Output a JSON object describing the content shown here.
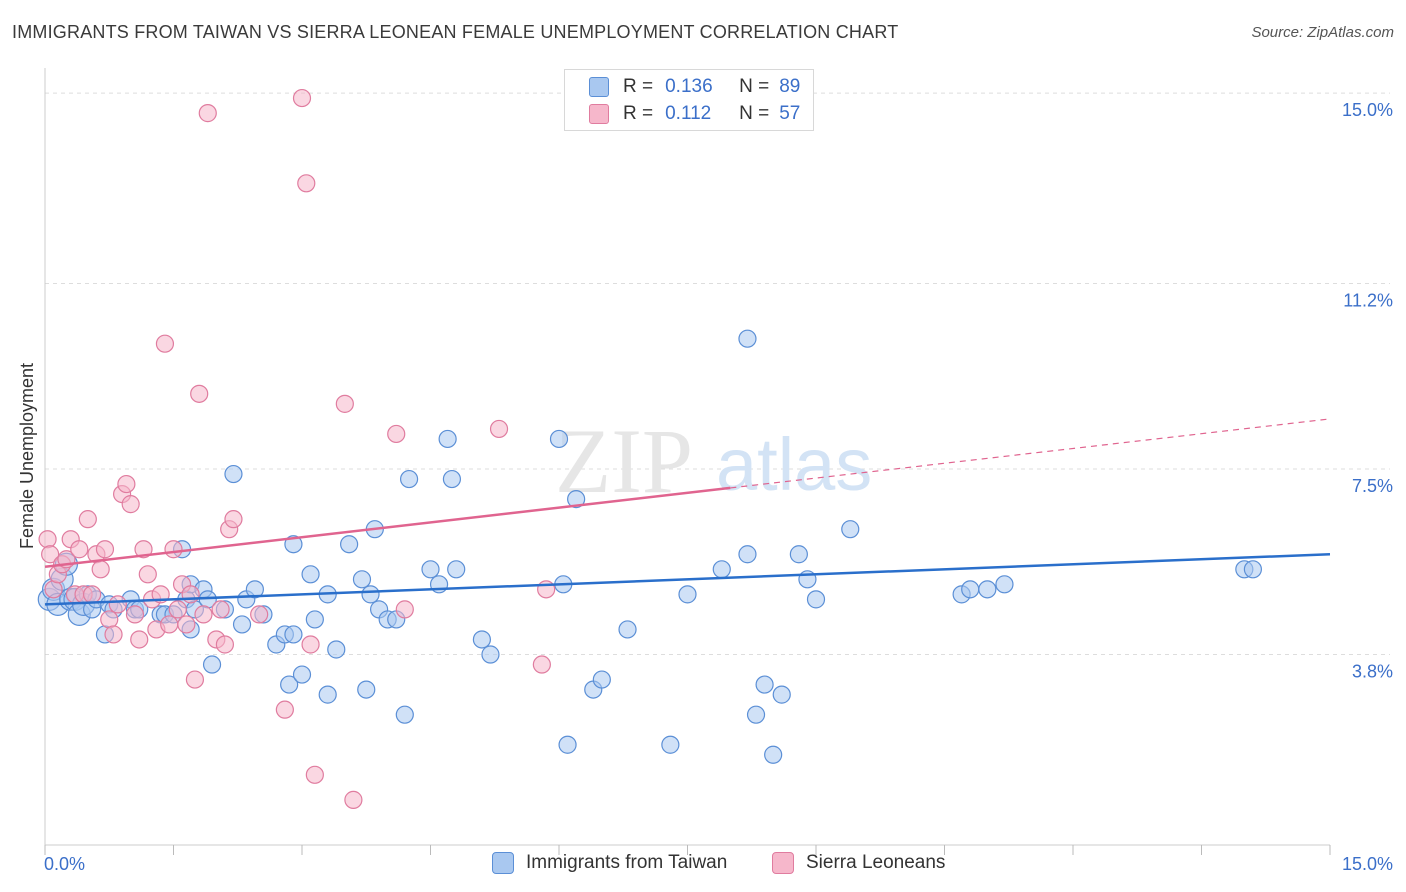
{
  "title": "IMMIGRANTS FROM TAIWAN VS SIERRA LEONEAN FEMALE UNEMPLOYMENT CORRELATION CHART",
  "source": "Source: ZipAtlas.com",
  "watermark": {
    "zip": "ZIP",
    "atlas": "atlas"
  },
  "legend": {
    "r_label": "R =",
    "n_label": "N =",
    "series": [
      {
        "r": "0.136",
        "n": "89"
      },
      {
        "r": "0.112",
        "n": "57"
      }
    ]
  },
  "colors": {
    "blue_fill": "#a9c8f0",
    "blue_stroke": "#5b8fd6",
    "blue_line": "#2a6fcb",
    "pink_fill": "#f6b7cb",
    "pink_stroke": "#e07c9f",
    "pink_line": "#e0648f",
    "axis_text": "#3b6fc9",
    "grid": "#dddddd"
  },
  "chart_data": {
    "type": "scatter",
    "title": "IMMIGRANTS FROM TAIWAN VS SIERRA LEONEAN FEMALE UNEMPLOYMENT CORRELATION CHART",
    "xlabel": "",
    "ylabel": "Female Unemployment",
    "xlim": [
      0,
      15
    ],
    "ylim": [
      0,
      15.5
    ],
    "x_tick_labels": [
      "0.0%",
      "15.0%"
    ],
    "y_ticks": [
      3.8,
      7.5,
      11.2,
      15.0
    ],
    "y_tick_labels": [
      "3.8%",
      "7.5%",
      "11.2%",
      "15.0%"
    ],
    "series": [
      {
        "name": "Immigrants from Taiwan",
        "color": "#5b8fd6",
        "trend": {
          "x": [
            0,
            15
          ],
          "y": [
            4.8,
            5.8
          ],
          "dashed_from": null
        },
        "points": [
          [
            0.05,
            4.9
          ],
          [
            0.1,
            5.1
          ],
          [
            0.15,
            4.8
          ],
          [
            0.2,
            5.3
          ],
          [
            0.25,
            5.6
          ],
          [
            0.3,
            4.9
          ],
          [
            0.35,
            4.9
          ],
          [
            0.4,
            4.6
          ],
          [
            0.45,
            4.8
          ],
          [
            0.5,
            5.0
          ],
          [
            0.55,
            4.7
          ],
          [
            0.6,
            4.9
          ],
          [
            0.7,
            4.2
          ],
          [
            0.75,
            4.8
          ],
          [
            0.8,
            4.7
          ],
          [
            1.0,
            4.9
          ],
          [
            1.05,
            4.7
          ],
          [
            1.1,
            4.7
          ],
          [
            1.35,
            4.6
          ],
          [
            1.4,
            4.6
          ],
          [
            1.5,
            4.6
          ],
          [
            1.6,
            5.9
          ],
          [
            1.65,
            4.9
          ],
          [
            1.7,
            5.2
          ],
          [
            1.7,
            4.3
          ],
          [
            1.75,
            4.7
          ],
          [
            1.85,
            5.1
          ],
          [
            1.9,
            4.9
          ],
          [
            1.95,
            3.6
          ],
          [
            2.1,
            4.7
          ],
          [
            2.2,
            7.4
          ],
          [
            2.3,
            4.4
          ],
          [
            2.35,
            4.9
          ],
          [
            2.45,
            5.1
          ],
          [
            2.55,
            4.6
          ],
          [
            2.7,
            4.0
          ],
          [
            2.8,
            4.2
          ],
          [
            2.85,
            3.2
          ],
          [
            2.9,
            4.2
          ],
          [
            2.9,
            6.0
          ],
          [
            3.0,
            3.4
          ],
          [
            3.1,
            5.4
          ],
          [
            3.15,
            4.5
          ],
          [
            3.3,
            5.0
          ],
          [
            3.3,
            3.0
          ],
          [
            3.4,
            3.9
          ],
          [
            3.55,
            6.0
          ],
          [
            3.7,
            5.3
          ],
          [
            3.75,
            3.1
          ],
          [
            3.8,
            5.0
          ],
          [
            3.85,
            6.3
          ],
          [
            3.9,
            4.7
          ],
          [
            4.0,
            4.5
          ],
          [
            4.1,
            4.5
          ],
          [
            4.2,
            2.6
          ],
          [
            4.25,
            7.3
          ],
          [
            4.5,
            5.5
          ],
          [
            4.6,
            5.2
          ],
          [
            4.7,
            8.1
          ],
          [
            4.75,
            7.3
          ],
          [
            4.8,
            5.5
          ],
          [
            5.1,
            4.1
          ],
          [
            5.2,
            3.8
          ],
          [
            6.0,
            8.1
          ],
          [
            6.05,
            5.2
          ],
          [
            6.1,
            2.0
          ],
          [
            6.2,
            6.9
          ],
          [
            6.4,
            3.1
          ],
          [
            6.5,
            3.3
          ],
          [
            6.8,
            4.3
          ],
          [
            7.3,
            2.0
          ],
          [
            7.5,
            5.0
          ],
          [
            7.9,
            5.5
          ],
          [
            8.2,
            10.1
          ],
          [
            8.2,
            5.8
          ],
          [
            8.3,
            2.6
          ],
          [
            8.4,
            3.2
          ],
          [
            8.5,
            1.8
          ],
          [
            8.6,
            3.0
          ],
          [
            8.8,
            5.8
          ],
          [
            8.9,
            5.3
          ],
          [
            9.0,
            4.9
          ],
          [
            9.4,
            6.3
          ],
          [
            10.7,
            5.0
          ],
          [
            10.8,
            5.1
          ],
          [
            11.0,
            5.1
          ],
          [
            11.2,
            5.2
          ],
          [
            14.0,
            5.5
          ],
          [
            14.1,
            5.5
          ]
        ]
      },
      {
        "name": "Sierra Leoneans",
        "color": "#e07c9f",
        "trend": {
          "x": [
            0,
            15
          ],
          "y": [
            5.55,
            8.5
          ],
          "dashed_from": 8.0
        },
        "points": [
          [
            0.03,
            6.1
          ],
          [
            0.06,
            5.8
          ],
          [
            0.1,
            5.1
          ],
          [
            0.15,
            5.4
          ],
          [
            0.2,
            5.6
          ],
          [
            0.25,
            5.7
          ],
          [
            0.3,
            6.1
          ],
          [
            0.35,
            5.0
          ],
          [
            0.4,
            5.9
          ],
          [
            0.45,
            5.0
          ],
          [
            0.5,
            6.5
          ],
          [
            0.55,
            5.0
          ],
          [
            0.6,
            5.8
          ],
          [
            0.65,
            5.5
          ],
          [
            0.7,
            5.9
          ],
          [
            0.75,
            4.5
          ],
          [
            0.8,
            4.2
          ],
          [
            0.85,
            4.8
          ],
          [
            0.9,
            7.0
          ],
          [
            0.95,
            7.2
          ],
          [
            1.0,
            6.8
          ],
          [
            1.05,
            4.6
          ],
          [
            1.1,
            4.1
          ],
          [
            1.15,
            5.9
          ],
          [
            1.2,
            5.4
          ],
          [
            1.25,
            4.9
          ],
          [
            1.3,
            4.3
          ],
          [
            1.35,
            5.0
          ],
          [
            1.4,
            10.0
          ],
          [
            1.45,
            4.4
          ],
          [
            1.5,
            5.9
          ],
          [
            1.55,
            4.7
          ],
          [
            1.6,
            5.2
          ],
          [
            1.65,
            4.4
          ],
          [
            1.7,
            5.0
          ],
          [
            1.75,
            3.3
          ],
          [
            1.8,
            9.0
          ],
          [
            1.85,
            4.6
          ],
          [
            1.9,
            14.6
          ],
          [
            2.0,
            4.1
          ],
          [
            2.05,
            4.7
          ],
          [
            2.1,
            4.0
          ],
          [
            2.15,
            6.3
          ],
          [
            2.2,
            6.5
          ],
          [
            2.5,
            4.6
          ],
          [
            2.8,
            2.7
          ],
          [
            3.0,
            14.9
          ],
          [
            3.05,
            13.2
          ],
          [
            3.1,
            4.0
          ],
          [
            3.15,
            1.4
          ],
          [
            3.5,
            8.8
          ],
          [
            3.6,
            0.9
          ],
          [
            4.1,
            8.2
          ],
          [
            4.2,
            4.7
          ],
          [
            5.3,
            8.3
          ],
          [
            5.8,
            3.6
          ],
          [
            5.85,
            5.1
          ]
        ]
      }
    ]
  },
  "bottom_legend": {
    "taiwan": "Immigrants from Taiwan",
    "sierra": "Sierra Leoneans"
  },
  "axis": {
    "x_min_label": "0.0%",
    "x_max_label": "15.0%",
    "ylabel": "Female Unemployment"
  }
}
